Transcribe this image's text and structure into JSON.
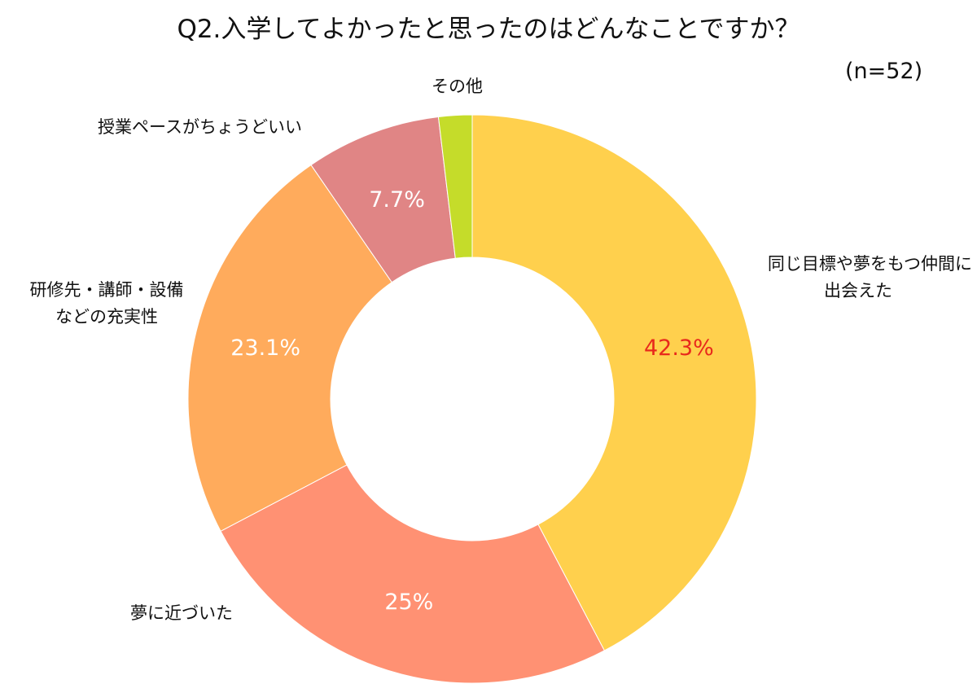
{
  "chart_data": {
    "type": "pie",
    "donut": true,
    "title": "Q2.入学してよかったと思ったのはどんなことですか？",
    "subtitle": "(n=52)",
    "slices": [
      {
        "label_lines": [
          "同じ目標や夢をもつ仲間に",
          "出会えた"
        ],
        "value": 42.3,
        "value_label": "42.3%",
        "color": "#FFD04D",
        "value_color": "#E8291C"
      },
      {
        "label_lines": [
          "夢に近づいた"
        ],
        "value": 25,
        "value_label": "25%",
        "color": "#FF9173",
        "value_color": "#FFFFFF"
      },
      {
        "label_lines": [
          "研修先・講師・設備",
          "などの充実性"
        ],
        "value": 23.1,
        "value_label": "23.1%",
        "color": "#FFAB5C",
        "value_color": "#FFFFFF"
      },
      {
        "label_lines": [
          "授業ペースがちょうどいい"
        ],
        "value": 7.7,
        "value_label": "7.7%",
        "color": "#E08585",
        "value_color": "#FFFFFF"
      },
      {
        "label_lines": [
          "その他"
        ],
        "value": 1.9,
        "value_label": "",
        "color": "#C5DC2A",
        "value_color": "#FFFFFF"
      }
    ],
    "start_angle": "12 o'clock",
    "direction": "clockwise",
    "legend": "none"
  }
}
